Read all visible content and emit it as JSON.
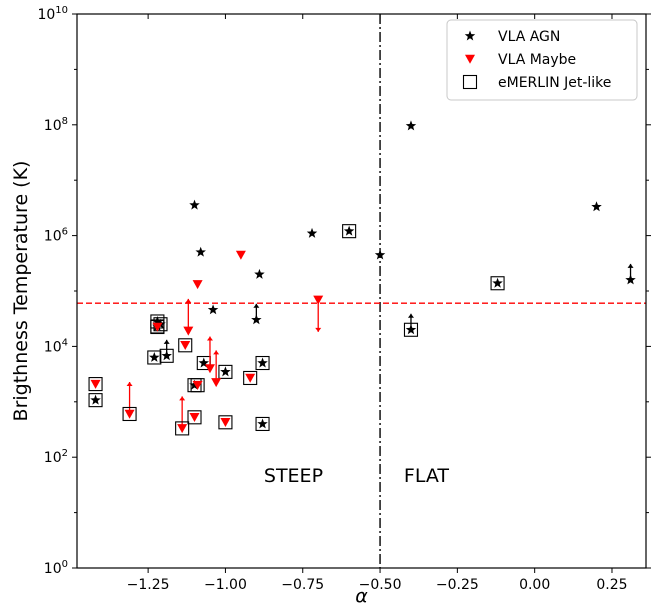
{
  "chart_data": {
    "type": "scatter",
    "xlabel": "α",
    "ylabel": "Brigthness Temperature (K)",
    "xlim": [
      -1.48,
      0.36
    ],
    "ylim_log10": [
      0,
      10
    ],
    "yscale": "log",
    "x_ticks": [
      {
        "value": -1.25,
        "label": "−1.25"
      },
      {
        "value": -1.0,
        "label": "−1.00"
      },
      {
        "value": -0.75,
        "label": "−0.75"
      },
      {
        "value": -0.5,
        "label": "−0.50"
      },
      {
        "value": -0.25,
        "label": "−0.25"
      },
      {
        "value": 0.0,
        "label": "0.00"
      },
      {
        "value": 0.25,
        "label": "0.25"
      }
    ],
    "y_ticks": [
      {
        "exp": 0,
        "base": "10",
        "sup": "0"
      },
      {
        "exp": 2,
        "base": "10",
        "sup": "2"
      },
      {
        "exp": 4,
        "base": "10",
        "sup": "4"
      },
      {
        "exp": 6,
        "base": "10",
        "sup": "6"
      },
      {
        "exp": 8,
        "base": "10",
        "sup": "8"
      },
      {
        "exp": 10,
        "base": "10",
        "sup": "10"
      }
    ],
    "vertical_line": {
      "x": -0.5,
      "style": "dashdot",
      "color": "#000000"
    },
    "horizontal_line": {
      "log10_y": 4.78,
      "style": "dashed",
      "color": "#ff0000"
    },
    "regions": [
      {
        "label": "STEEP",
        "x": -0.78,
        "log10_y": 1.55
      },
      {
        "label": "FLAT",
        "x": -0.35,
        "log10_y": 1.55
      }
    ],
    "legend": {
      "position": "upper right",
      "entries": [
        {
          "marker": "star",
          "label": "VLA AGN"
        },
        {
          "marker": "triangle",
          "label": "VLA Maybe"
        },
        {
          "marker": "square",
          "label": "eMERLIN Jet-like"
        }
      ]
    },
    "colors": {
      "agn": "#000000",
      "maybe": "#ff0000",
      "limit_line": "#ff0000",
      "box": "#000000"
    },
    "series": [
      {
        "name": "VLA AGN",
        "marker": "star",
        "points": [
          {
            "x": -1.42,
            "log10_y": 3.03,
            "box": true
          },
          {
            "x": -1.22,
            "log10_y": 4.45,
            "box": true
          },
          {
            "x": -1.21,
            "log10_y": 4.4,
            "box": true
          },
          {
            "x": -1.22,
            "log10_y": 4.36,
            "box": true
          },
          {
            "x": -1.23,
            "log10_y": 3.8,
            "box": true
          },
          {
            "x": -1.19,
            "log10_y": 3.83,
            "box": true,
            "arrow": "up"
          },
          {
            "x": -1.1,
            "log10_y": 6.55
          },
          {
            "x": -1.08,
            "log10_y": 5.7
          },
          {
            "x": -1.07,
            "log10_y": 3.7,
            "box": true
          },
          {
            "x": -1.1,
            "log10_y": 3.3,
            "box": true
          },
          {
            "x": -1.04,
            "log10_y": 4.66
          },
          {
            "x": -1.0,
            "log10_y": 3.54,
            "box": true
          },
          {
            "x": -0.89,
            "log10_y": 5.3
          },
          {
            "x": -0.9,
            "log10_y": 4.48,
            "arrow": "up"
          },
          {
            "x": -0.88,
            "log10_y": 3.7,
            "box": true
          },
          {
            "x": -0.88,
            "log10_y": 2.6,
            "box": true
          },
          {
            "x": -0.72,
            "log10_y": 6.04
          },
          {
            "x": -0.6,
            "log10_y": 6.08,
            "box": true
          },
          {
            "x": -0.5,
            "log10_y": 5.65
          },
          {
            "x": -0.4,
            "log10_y": 7.98
          },
          {
            "x": -0.4,
            "log10_y": 4.3,
            "box": true,
            "arrow": "up"
          },
          {
            "x": -0.12,
            "log10_y": 5.14,
            "box": true
          },
          {
            "x": 0.2,
            "log10_y": 6.52
          },
          {
            "x": 0.31,
            "log10_y": 5.2,
            "arrow": "up"
          }
        ]
      },
      {
        "name": "VLA Maybe",
        "marker": "triangle",
        "points": [
          {
            "x": -1.42,
            "log10_y": 3.32,
            "box": true
          },
          {
            "x": -1.31,
            "log10_y": 2.78,
            "box": true,
            "arrow": "up"
          },
          {
            "x": -1.22,
            "log10_y": 4.35,
            "box": true
          },
          {
            "x": -1.14,
            "log10_y": 2.52,
            "box": true,
            "arrow": "up"
          },
          {
            "x": -1.13,
            "log10_y": 4.02,
            "box": true
          },
          {
            "x": -1.12,
            "log10_y": 4.28,
            "arrow": "up"
          },
          {
            "x": -1.1,
            "log10_y": 2.72,
            "box": true
          },
          {
            "x": -1.09,
            "log10_y": 5.12
          },
          {
            "x": -1.09,
            "log10_y": 3.3,
            "box": true
          },
          {
            "x": -1.05,
            "log10_y": 3.6,
            "arrow": "up"
          },
          {
            "x": -1.03,
            "log10_y": 3.35,
            "arrow": "up"
          },
          {
            "x": -0.95,
            "log10_y": 5.65
          },
          {
            "x": -1.0,
            "log10_y": 2.63,
            "box": true
          },
          {
            "x": -0.92,
            "log10_y": 3.43,
            "box": true
          },
          {
            "x": -0.7,
            "log10_y": 4.84,
            "arrow": "down"
          }
        ]
      }
    ]
  }
}
